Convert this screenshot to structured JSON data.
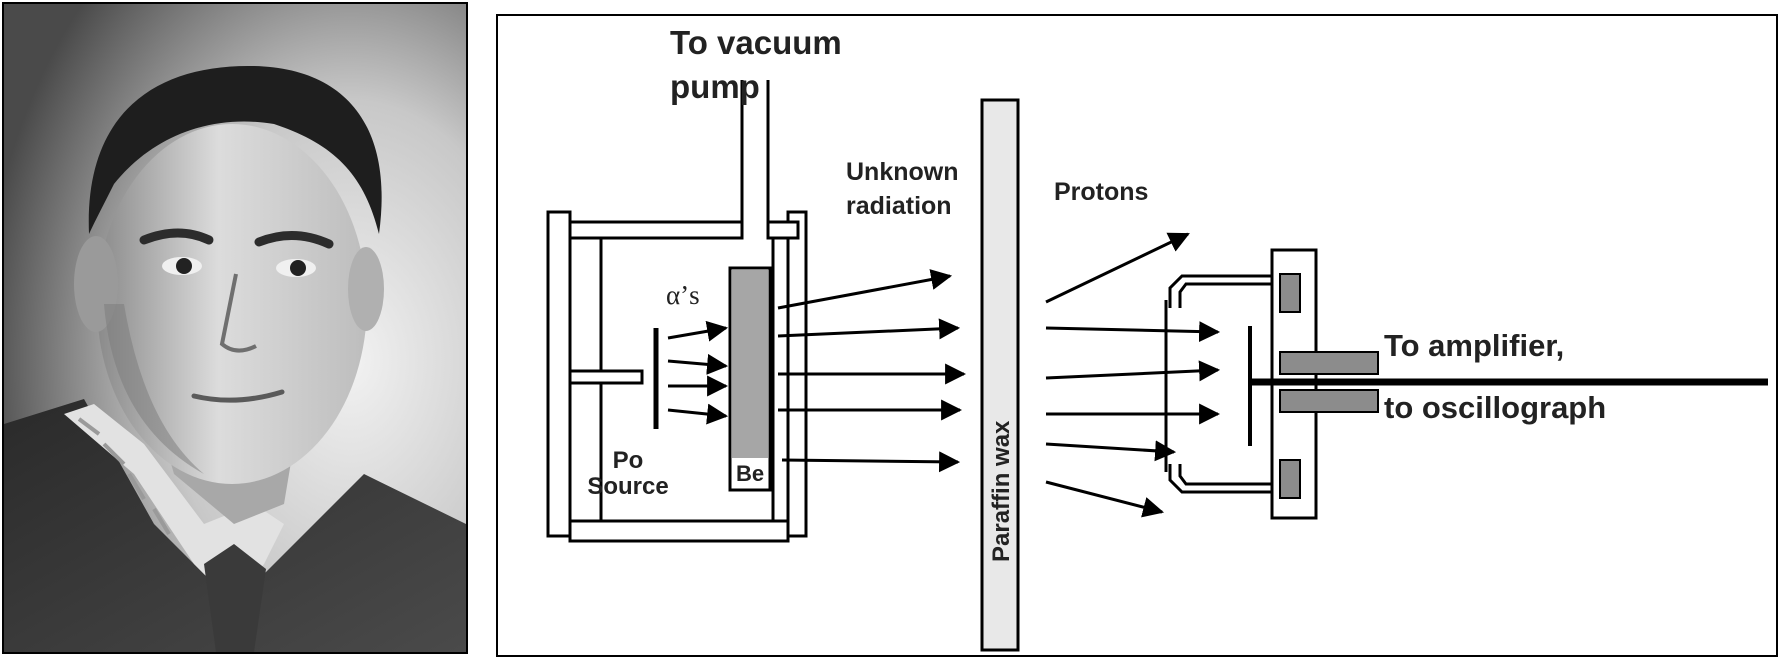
{
  "portrait": {
    "subject": "black-and-white portrait photograph of a man in a suit jacket and tie",
    "style": "grayscale"
  },
  "diagram": {
    "labels": {
      "vacuum_line1": "To vacuum",
      "vacuum_line2": "pump",
      "alphas": "α’s",
      "source_line1": "Po",
      "source_line2": "Source",
      "target": "Be",
      "unknown_line1": "Unknown",
      "unknown_line2": "radiation",
      "paraffin": "Paraffin wax",
      "protons": "Protons",
      "amplifier_line1": "To amplifier,",
      "amplifier_line2": "to oscillograph"
    },
    "colors": {
      "line": "#000000",
      "paraffin_fill": "#e8e8e8",
      "beryllium_fill": "#a6a6a6",
      "detector_block_fill": "#8c8c8c"
    }
  }
}
